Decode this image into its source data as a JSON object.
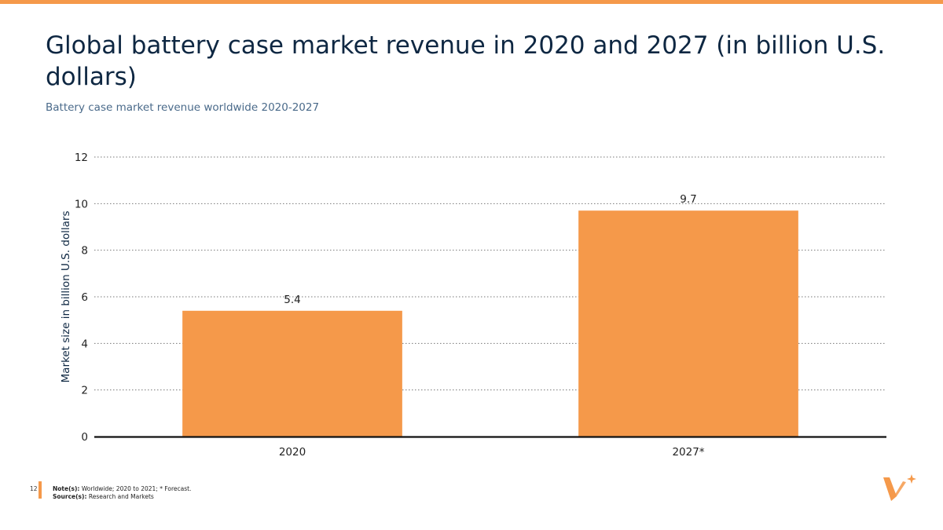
{
  "header": {
    "title": "Global battery case market revenue in 2020 and 2027 (in billion U.S. dollars)",
    "subtitle": "Battery case market revenue worldwide 2020-2027"
  },
  "chart_data": {
    "type": "bar",
    "categories": [
      "2020",
      "2027*"
    ],
    "values": [
      5.4,
      9.7
    ],
    "value_labels": [
      "5.4",
      "9.7"
    ],
    "ylabel": "Market size in billion U.S. dollars",
    "ylim": [
      0,
      12
    ],
    "yticks": [
      0,
      2,
      4,
      6,
      8,
      10,
      12
    ],
    "grid": "dotted horizontal",
    "bar_color": "#f5994a"
  },
  "footer": {
    "page_number": "12",
    "note_label": "Note(s):",
    "note_text": "Worldwide; 2020 to 2021; * Forecast.",
    "source_label": "Source(s):",
    "source_text": "Research and Markets"
  },
  "colors": {
    "accent": "#f5994a",
    "title": "#0e2742",
    "subtitle": "#4a6a8a"
  },
  "logo": {
    "icon": "brand-logo-icon"
  }
}
